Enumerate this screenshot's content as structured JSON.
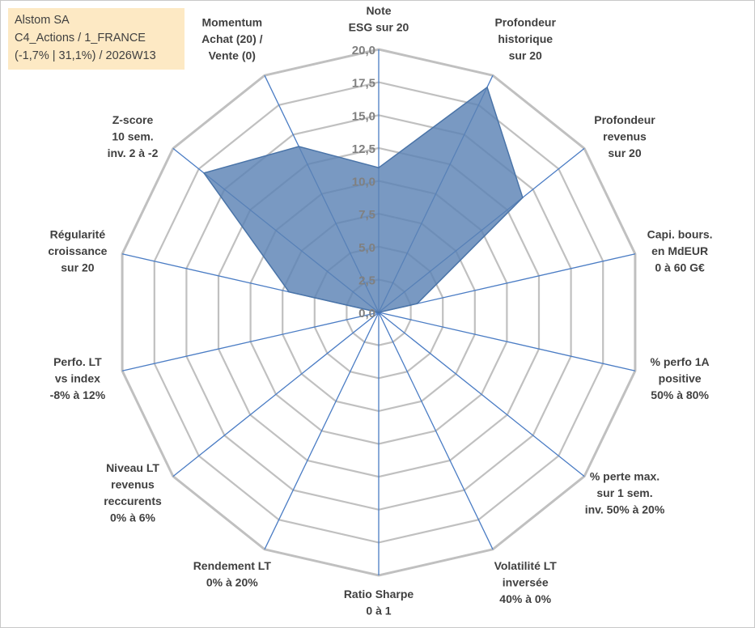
{
  "header": {
    "title": "Alstom SA",
    "category": "C4_Actions / 1_FRANCE",
    "stats": "(-1,7% | 31,1%) / 2026W13"
  },
  "chart_data": {
    "type": "radar",
    "title": "Alstom SA",
    "rmin": 0,
    "rmax": 20,
    "tick_values": [
      0,
      2.5,
      5,
      7.5,
      10,
      12.5,
      15,
      17.5,
      20
    ],
    "tick_labels": [
      "0,0",
      "2,5",
      "5,0",
      "7,5",
      "10,0",
      "12,5",
      "15,0",
      "17,5",
      "20,0"
    ],
    "axes": [
      {
        "label": [
          "Note",
          "ESG sur 20"
        ],
        "value": 11
      },
      {
        "label": [
          "Profondeur",
          "historique",
          "sur 20"
        ],
        "value": 19
      },
      {
        "label": [
          "Profondeur",
          "revenus",
          "sur 20"
        ],
        "value": 14
      },
      {
        "label": [
          "Capi. bours.",
          "en MdEUR",
          "0 à 60 G€"
        ],
        "value": 3
      },
      {
        "label": [
          "% perfo 1A",
          "positive",
          "50% à 80%"
        ],
        "value": 0
      },
      {
        "label": [
          "% perte max.",
          "sur 1 sem.",
          "inv. 50% à 20%"
        ],
        "value": 0
      },
      {
        "label": [
          "Volatilité LT",
          "inversée",
          "40% à 0%"
        ],
        "value": 0
      },
      {
        "label": [
          "Ratio Sharpe",
          "0 à 1"
        ],
        "value": 0
      },
      {
        "label": [
          "Rendement LT",
          "0% à 20%"
        ],
        "value": 0
      },
      {
        "label": [
          "Niveau LT",
          "revenus",
          "reccurents",
          "0% à 6%"
        ],
        "value": 0
      },
      {
        "label": [
          "Perfo. LT",
          "vs index",
          "-8% à 12%"
        ],
        "value": 0
      },
      {
        "label": [
          "Régularité",
          "croissance",
          "sur 20"
        ],
        "value": 7
      },
      {
        "label": [
          "Z-score",
          "10 sem.",
          "inv. 2 à -2"
        ],
        "value": 17
      },
      {
        "label": [
          "Momentum",
          "Achat (20) /",
          "Vente (0)"
        ],
        "value": 14
      }
    ],
    "series": [
      {
        "name": "Alstom SA",
        "color": "#5b82b5"
      }
    ],
    "colors": {
      "grid": "#c0c0c0",
      "spoke": "#4a7cc4",
      "fill": "#5b82b5",
      "stroke": "#4a74a8"
    }
  }
}
